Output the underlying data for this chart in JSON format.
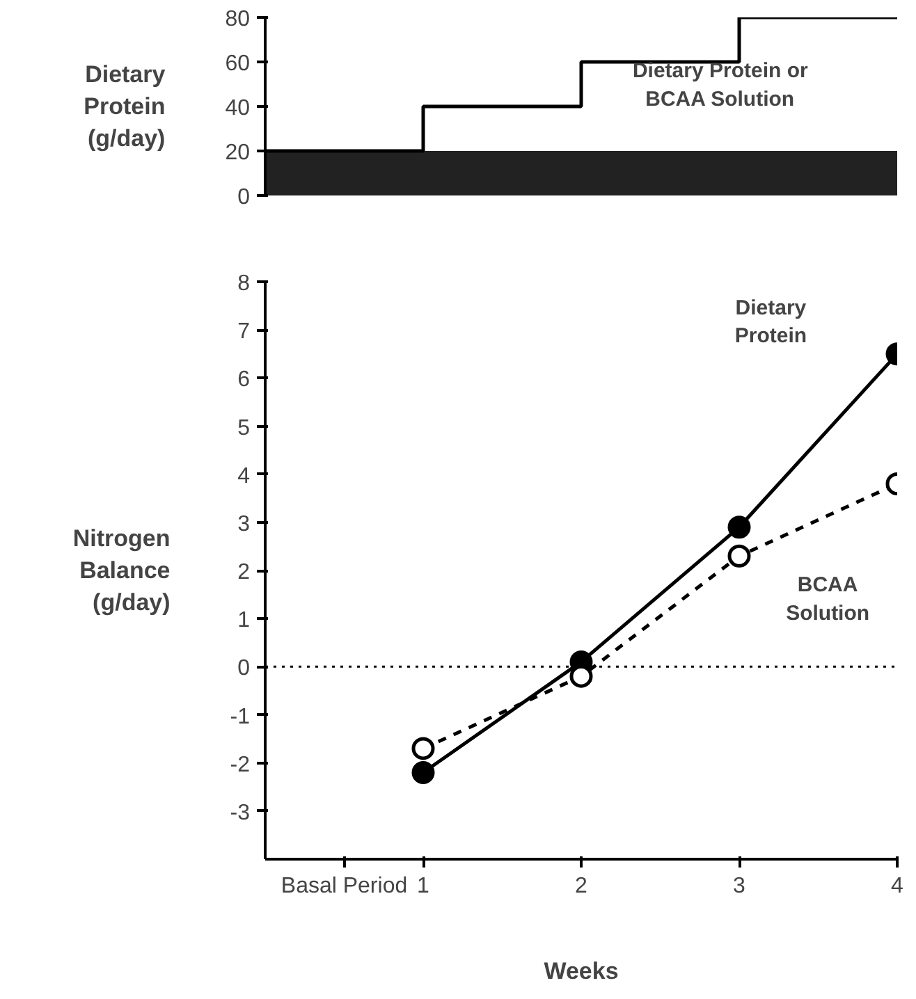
{
  "chart_data": [
    {
      "type": "step",
      "ylabel": "Dietary Protein (g/day)",
      "x": [
        0,
        1,
        2,
        3,
        4
      ],
      "series": [
        {
          "color": "#000000",
          "values": [
            20,
            40,
            60,
            80,
            80
          ]
        }
      ],
      "xlim": [
        0,
        4
      ],
      "ylim": [
        0,
        80
      ],
      "yticks": [
        0,
        20,
        40,
        60,
        80
      ],
      "tick_labels": "y",
      "bands": [
        {
          "axis": "y",
          "from": 0,
          "to": 20,
          "color": "#222222"
        }
      ],
      "annotations": [
        "Dietary Protein or BCAA Solution"
      ]
    },
    {
      "type": "line",
      "xlabel": "Weeks",
      "ylabel": "Nitrogen Balance (g/day)",
      "x": [
        1,
        2,
        3,
        4
      ],
      "series": [
        {
          "color": "#000000",
          "values": [
            -2.2,
            0.1,
            2.9,
            6.5
          ],
          "line_style": "solid"
        },
        {
          "color": "#000000",
          "values": [
            -1.7,
            -0.2,
            2.3,
            3.8
          ],
          "line_style": "dashed"
        }
      ],
      "marker": "circle",
      "xlim": [
        0,
        4
      ],
      "xticks": [
        {
          "value": 0.5,
          "label": "Basal Period"
        },
        1,
        2,
        3,
        4
      ],
      "ylim": [
        -4,
        8
      ],
      "yticks": [
        -3,
        -2,
        -1,
        0,
        1,
        2,
        3,
        4,
        5,
        6,
        7,
        8
      ],
      "ref_lines": [
        {
          "axis": "y",
          "value": 0,
          "line_style": "dotted"
        }
      ],
      "annotations": [
        "Dietary Protein",
        "BCAA Solution"
      ]
    }
  ]
}
